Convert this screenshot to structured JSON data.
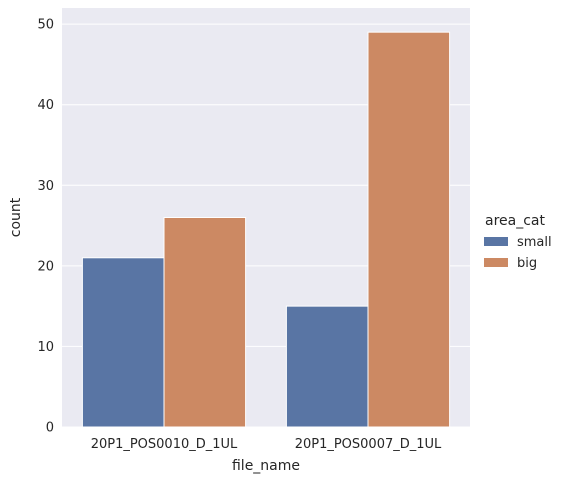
{
  "chart_data": {
    "type": "bar",
    "categories": [
      "20P1_POS0010_D_1UL",
      "20P1_POS0007_D_1UL"
    ],
    "series": [
      {
        "name": "small",
        "values": [
          21,
          15
        ],
        "color": "#5975a4"
      },
      {
        "name": "big",
        "values": [
          26,
          49
        ],
        "color": "#cc8963"
      }
    ],
    "xlabel": "file_name",
    "ylabel": "count",
    "ylim": [
      0,
      52
    ],
    "yticks": [
      0,
      10,
      20,
      30,
      40,
      50
    ],
    "grid": true,
    "legend_title": "area_cat",
    "legend_position": "right",
    "background": "#eaeaf2"
  }
}
